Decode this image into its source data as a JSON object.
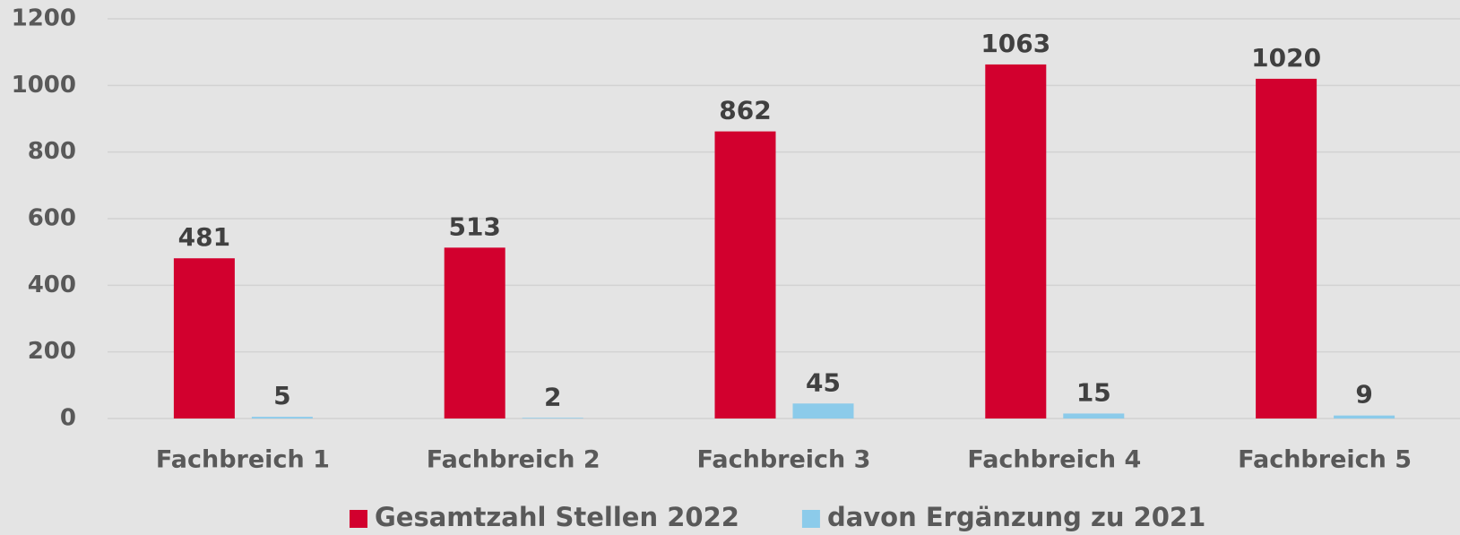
{
  "chart_data": {
    "type": "bar",
    "categories": [
      "Fachbreich 1",
      "Fachbreich 2",
      "Fachbreich 3",
      "Fachbreich 4",
      "Fachbreich 5"
    ],
    "series": [
      {
        "name": "Gesamtzahl Stellen 2022",
        "color": "#d2002e",
        "values": [
          481,
          513,
          862,
          1063,
          1020
        ]
      },
      {
        "name": "davon Ergänzung zu 2021",
        "color": "#8ccbea",
        "values": [
          5,
          2,
          45,
          15,
          9
        ]
      }
    ],
    "ylim": [
      0,
      1200
    ],
    "yticks": [
      0,
      200,
      400,
      600,
      800,
      1000,
      1200
    ],
    "grid": true,
    "legend": "bottom"
  }
}
